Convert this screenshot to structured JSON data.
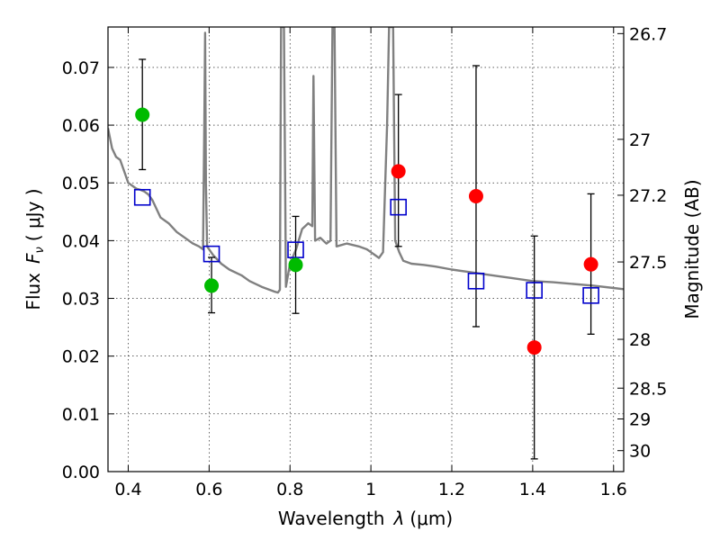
{
  "chart_data": {
    "type": "scatter",
    "xlabel_prefix": "Wavelength",
    "xlabel_symbol": "λ",
    "xlabel_unit": "(μm)",
    "ylabel_prefix": "Flux",
    "ylabel_symbol": "F",
    "ylabel_subscript": "ν",
    "ylabel_unit": "( μJy )",
    "y2label": "Magnitude (AB)",
    "xlim": [
      0.35,
      1.625
    ],
    "ylim": [
      0.0,
      0.077
    ],
    "grid": true,
    "x_ticks": [
      0.4,
      0.6,
      0.8,
      1.0,
      1.2,
      1.4,
      1.6
    ],
    "x_tick_labels": [
      "0.4",
      "0.6",
      "0.8",
      "1",
      "1.2",
      "1.4",
      "1.6"
    ],
    "y_ticks": [
      0.0,
      0.01,
      0.02,
      0.03,
      0.04,
      0.05,
      0.06,
      0.07
    ],
    "y_tick_labels": [
      "0.00",
      "0.01",
      "0.02",
      "0.03",
      "0.04",
      "0.05",
      "0.06",
      "0.07"
    ],
    "y2_ticks": [
      {
        "label": "26.7",
        "mag": 26.7
      },
      {
        "label": "27",
        "mag": 27.0
      },
      {
        "label": "27.2",
        "mag": 27.2
      },
      {
        "label": "27.5",
        "mag": 27.5
      },
      {
        "label": "28",
        "mag": 28.0
      },
      {
        "label": "28.5",
        "mag": 28.5
      },
      {
        "label": "29",
        "mag": 29.0
      },
      {
        "label": "30",
        "mag": 30.0
      }
    ],
    "observed_points": [
      {
        "x": 0.435,
        "y": 0.0618,
        "yerr_low": 0.0095,
        "yerr_high": 0.0096,
        "color": "#00bb00"
      },
      {
        "x": 0.606,
        "y": 0.0322,
        "yerr_low": 0.0047,
        "yerr_high": 0.0049,
        "color": "#00bb00"
      },
      {
        "x": 0.814,
        "y": 0.0358,
        "yerr_low": 0.0084,
        "yerr_high": 0.0084,
        "color": "#00bb00"
      },
      {
        "x": 1.068,
        "y": 0.052,
        "yerr_low": 0.013,
        "yerr_high": 0.0133,
        "color": "#ff0000"
      },
      {
        "x": 1.26,
        "y": 0.0477,
        "yerr_low": 0.0226,
        "yerr_high": 0.0226,
        "color": "#ff0000"
      },
      {
        "x": 1.404,
        "y": 0.0215,
        "yerr_low": 0.0193,
        "yerr_high": 0.0193,
        "color": "#ff0000"
      },
      {
        "x": 1.544,
        "y": 0.0359,
        "yerr_low": 0.0121,
        "yerr_high": 0.0122,
        "color": "#ff0000"
      }
    ],
    "model_points": [
      {
        "x": 0.435,
        "y": 0.0475
      },
      {
        "x": 0.606,
        "y": 0.0377
      },
      {
        "x": 0.814,
        "y": 0.0384
      },
      {
        "x": 1.068,
        "y": 0.0458
      },
      {
        "x": 1.26,
        "y": 0.033
      },
      {
        "x": 1.404,
        "y": 0.0314
      },
      {
        "x": 1.544,
        "y": 0.0305
      }
    ],
    "model_color": "#0000cc",
    "spectrum_color": "#808080",
    "spectrum": [
      [
        0.35,
        0.0595
      ],
      [
        0.36,
        0.056
      ],
      [
        0.37,
        0.0545
      ],
      [
        0.38,
        0.054
      ],
      [
        0.39,
        0.052
      ],
      [
        0.4,
        0.05
      ],
      [
        0.41,
        0.0495
      ],
      [
        0.42,
        0.049
      ],
      [
        0.43,
        0.0488
      ],
      [
        0.44,
        0.0485
      ],
      [
        0.45,
        0.048
      ],
      [
        0.46,
        0.047
      ],
      [
        0.47,
        0.0455
      ],
      [
        0.48,
        0.044
      ],
      [
        0.5,
        0.043
      ],
      [
        0.52,
        0.0415
      ],
      [
        0.54,
        0.0405
      ],
      [
        0.56,
        0.0395
      ],
      [
        0.575,
        0.039
      ],
      [
        0.585,
        0.0385
      ],
      [
        0.588,
        0.06
      ],
      [
        0.59,
        0.076
      ],
      [
        0.592,
        0.05
      ],
      [
        0.595,
        0.039
      ],
      [
        0.61,
        0.0375
      ],
      [
        0.63,
        0.036
      ],
      [
        0.65,
        0.035
      ],
      [
        0.68,
        0.034
      ],
      [
        0.7,
        0.033
      ],
      [
        0.73,
        0.032
      ],
      [
        0.76,
        0.0312
      ],
      [
        0.77,
        0.031
      ],
      [
        0.775,
        0.0315
      ],
      [
        0.778,
        0.077
      ],
      [
        0.785,
        0.077
      ],
      [
        0.79,
        0.032
      ],
      [
        0.8,
        0.036
      ],
      [
        0.815,
        0.0385
      ],
      [
        0.83,
        0.042
      ],
      [
        0.845,
        0.043
      ],
      [
        0.855,
        0.0425
      ],
      [
        0.858,
        0.0685
      ],
      [
        0.862,
        0.04
      ],
      [
        0.875,
        0.0405
      ],
      [
        0.89,
        0.0395
      ],
      [
        0.9,
        0.04
      ],
      [
        0.905,
        0.077
      ],
      [
        0.91,
        0.077
      ],
      [
        0.915,
        0.039
      ],
      [
        0.94,
        0.0395
      ],
      [
        0.97,
        0.039
      ],
      [
        0.99,
        0.0385
      ],
      [
        1.0,
        0.038
      ],
      [
        1.01,
        0.0375
      ],
      [
        1.02,
        0.037
      ],
      [
        1.03,
        0.038
      ],
      [
        1.04,
        0.06
      ],
      [
        1.045,
        0.077
      ],
      [
        1.055,
        0.077
      ],
      [
        1.06,
        0.04
      ],
      [
        1.07,
        0.038
      ],
      [
        1.08,
        0.0365
      ],
      [
        1.1,
        0.036
      ],
      [
        1.13,
        0.0358
      ],
      [
        1.16,
        0.0355
      ],
      [
        1.2,
        0.035
      ],
      [
        1.25,
        0.0345
      ],
      [
        1.3,
        0.034
      ],
      [
        1.35,
        0.0335
      ],
      [
        1.4,
        0.033
      ],
      [
        1.45,
        0.0328
      ],
      [
        1.5,
        0.0325
      ],
      [
        1.55,
        0.0322
      ],
      [
        1.6,
        0.0318
      ],
      [
        1.625,
        0.0316
      ]
    ]
  }
}
